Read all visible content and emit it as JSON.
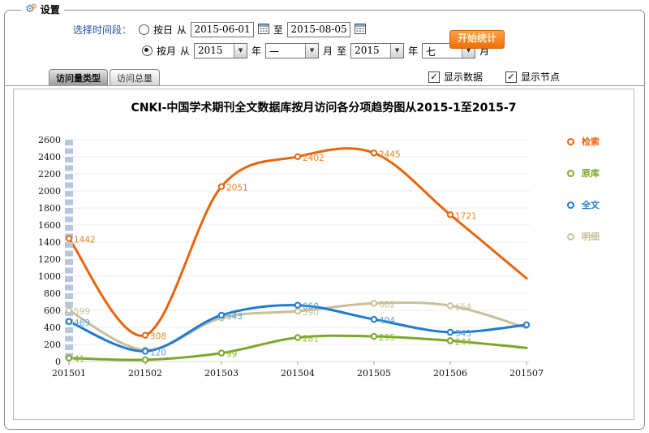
{
  "window": {
    "legend_title": "设置"
  },
  "settings": {
    "label": "选择时间段：",
    "daily": {
      "radio_label": "按日",
      "selected": false,
      "from_label": "从",
      "from_value": "2015-06-01",
      "to_label": "至",
      "to_value": "2015-08-05"
    },
    "monthly": {
      "radio_label": "按月",
      "selected": true,
      "from_label": "从",
      "from_year": "2015",
      "year_label": "年",
      "from_month": "一",
      "month_label": "月",
      "to_label": "至",
      "to_year": "2015",
      "year_label2": "年",
      "to_month": "七",
      "month_label2": "月"
    },
    "start_button": "开始统计"
  },
  "tabs": [
    {
      "label": "访问量类型",
      "active": true
    },
    {
      "label": "访问总量",
      "active": false
    }
  ],
  "options": [
    {
      "label": "显示数据",
      "checked": true
    },
    {
      "label": "显示节点",
      "checked": true
    }
  ],
  "chart_data": {
    "type": "line",
    "title": "CNKI-中国学术期刊全文数据库按月访问各分项趋势图从2015-1至2015-7",
    "categories": [
      "201501",
      "201502",
      "201503",
      "201504",
      "201505",
      "201506",
      "201507"
    ],
    "xlabel": "",
    "ylabel": "",
    "ylim": [
      0,
      2600
    ],
    "ytick_step": 200,
    "grid": true,
    "legend_position": "right",
    "axis_bar_color": "#b5c7df",
    "series": [
      {
        "name": "检索",
        "color": "#E8650D",
        "label_color": "#E8831F",
        "end_node": false,
        "values": [
          1442,
          308,
          2051,
          2402,
          2445,
          1721,
          975
        ],
        "labels": [
          1442,
          308,
          2051,
          2402,
          2445,
          1721,
          null
        ]
      },
      {
        "name": "原库",
        "color": "#7DA62A",
        "label_color": "#8FB832",
        "end_node": false,
        "values": [
          41,
          20,
          99,
          281,
          295,
          244,
          160
        ],
        "labels": [
          41,
          null,
          99,
          281,
          295,
          244,
          null
        ]
      },
      {
        "name": "全文",
        "color": "#1F7BCF",
        "label_color": "#5C9FD6",
        "end_node": true,
        "values": [
          469,
          120,
          543,
          660,
          494,
          343,
          430
        ],
        "labels": [
          469,
          120,
          543,
          660,
          494,
          343,
          null
        ]
      },
      {
        "name": "明细",
        "color": "#C9C098",
        "label_color": "#C9C098",
        "end_node": false,
        "values": [
          599,
          135,
          512,
          590,
          682,
          654,
          395
        ],
        "labels": [
          599,
          null,
          null,
          590,
          682,
          654,
          null
        ]
      }
    ]
  }
}
